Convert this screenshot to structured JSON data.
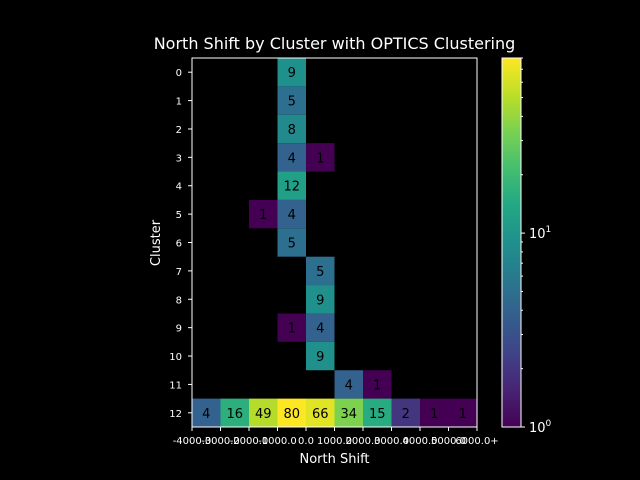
{
  "chart_data": {
    "type": "heatmap",
    "title": "North Shift by Cluster with OPTICS Clustering",
    "xlabel": "North Shift",
    "ylabel": "Cluster",
    "x_tick_labels": [
      "-4000.0",
      "-3000.0",
      "-2000.0",
      "-1000.0",
      "0.0",
      "1000.0",
      "2000.0",
      "3000.0",
      "4000.0",
      "5000.0",
      "6000.0+"
    ],
    "y_tick_labels": [
      "0",
      "1",
      "2",
      "3",
      "4",
      "5",
      "6",
      "7",
      "8",
      "9",
      "10",
      "11",
      "12"
    ],
    "x_bins": 10,
    "colormap": "viridis",
    "color_scale": "log",
    "colorbar_range": [
      1,
      80
    ],
    "colorbar_ticks": [
      {
        "value": 1,
        "base": "10",
        "exp": "0"
      },
      {
        "value": 10,
        "base": "10",
        "exp": "1"
      }
    ],
    "background_color": "#000000",
    "cells": [
      {
        "cluster": 0,
        "bin": 3,
        "count": 9
      },
      {
        "cluster": 1,
        "bin": 3,
        "count": 5
      },
      {
        "cluster": 2,
        "bin": 3,
        "count": 8
      },
      {
        "cluster": 3,
        "bin": 3,
        "count": 4
      },
      {
        "cluster": 3,
        "bin": 4,
        "count": 1
      },
      {
        "cluster": 4,
        "bin": 3,
        "count": 12
      },
      {
        "cluster": 5,
        "bin": 2,
        "count": 1
      },
      {
        "cluster": 5,
        "bin": 3,
        "count": 4
      },
      {
        "cluster": 6,
        "bin": 3,
        "count": 5
      },
      {
        "cluster": 7,
        "bin": 4,
        "count": 5
      },
      {
        "cluster": 8,
        "bin": 4,
        "count": 9
      },
      {
        "cluster": 9,
        "bin": 3,
        "count": 1
      },
      {
        "cluster": 9,
        "bin": 4,
        "count": 4
      },
      {
        "cluster": 10,
        "bin": 4,
        "count": 9
      },
      {
        "cluster": 11,
        "bin": 5,
        "count": 4
      },
      {
        "cluster": 11,
        "bin": 6,
        "count": 1
      },
      {
        "cluster": 12,
        "bin": 0,
        "count": 4
      },
      {
        "cluster": 12,
        "bin": 1,
        "count": 16
      },
      {
        "cluster": 12,
        "bin": 2,
        "count": 49
      },
      {
        "cluster": 12,
        "bin": 3,
        "count": 80
      },
      {
        "cluster": 12,
        "bin": 4,
        "count": 66
      },
      {
        "cluster": 12,
        "bin": 5,
        "count": 34
      },
      {
        "cluster": 12,
        "bin": 6,
        "count": 15
      },
      {
        "cluster": 12,
        "bin": 7,
        "count": 2
      },
      {
        "cluster": 12,
        "bin": 8,
        "count": 1
      },
      {
        "cluster": 12,
        "bin": 9,
        "count": 1
      }
    ]
  }
}
